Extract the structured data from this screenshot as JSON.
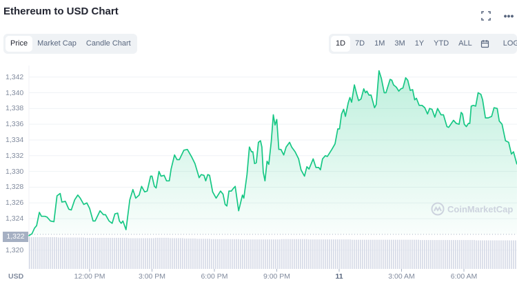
{
  "header": {
    "title": "Ethereum to USD Chart",
    "fullscreen_icon": "expand-icon",
    "more_icon": "more-horizontal-icon"
  },
  "tabs": [
    {
      "label": "Price",
      "active": true
    },
    {
      "label": "Market Cap"
    },
    {
      "label": "Candle Chart"
    }
  ],
  "ranges": [
    {
      "label": "1D",
      "active": true
    },
    {
      "label": "7D"
    },
    {
      "label": "1M"
    },
    {
      "label": "3M"
    },
    {
      "label": "1Y"
    },
    {
      "label": "YTD"
    },
    {
      "label": "ALL"
    }
  ],
  "calendar_icon": "calendar-icon",
  "log_label": "LOG",
  "watermark": "CoinMarketCap",
  "colors": {
    "line": "#16c784",
    "volume": "#d8dce8",
    "reference": "#a6b0c3"
  },
  "chart_data": {
    "type": "area",
    "currency_label": "USD",
    "ylim": [
      1318,
      1343.5
    ],
    "y_ticks": [
      "1,320",
      "1,322",
      "1,324",
      "1,326",
      "1,328",
      "1,330",
      "1,332",
      "1,334",
      "1,336",
      "1,338",
      "1,340",
      "1,342"
    ],
    "y_tick_values": [
      1320,
      1322,
      1324,
      1326,
      1328,
      1330,
      1332,
      1334,
      1336,
      1338,
      1340,
      1342
    ],
    "x_ticks": [
      {
        "label": "12:00 PM",
        "t": "10 12:00"
      },
      {
        "label": "3:00 PM",
        "t": "10 15:00"
      },
      {
        "label": "6:00 PM",
        "t": "10 18:00"
      },
      {
        "label": "9:00 PM",
        "t": "10 21:00"
      },
      {
        "label": "11",
        "t": "11 00:00",
        "bold": true
      },
      {
        "label": "3:00 AM",
        "t": "11 03:00"
      },
      {
        "label": "6:00 AM",
        "t": "11 06:00"
      }
    ],
    "reference_price": {
      "label": "1,322",
      "value": 1322
    },
    "grid": true,
    "series": [
      {
        "points": [
          [
            "10 09:04",
            1321.8
          ],
          [
            "10 09:14",
            1322.1
          ],
          [
            "10 09:21",
            1322.8
          ],
          [
            "10 09:27",
            1323.1
          ],
          [
            "10 09:35",
            1324.8
          ],
          [
            "10 09:41",
            1324.3
          ],
          [
            "10 09:51",
            1324.3
          ],
          [
            "10 09:57",
            1324.2
          ],
          [
            "10 10:07",
            1323.7
          ],
          [
            "10 10:17",
            1323.6
          ],
          [
            "10 10:26",
            1326.9
          ],
          [
            "10 10:35",
            1327.2
          ],
          [
            "10 10:40",
            1326.1
          ],
          [
            "10 10:50",
            1326.2
          ],
          [
            "10 11:00",
            1325.2
          ],
          [
            "10 11:07",
            1325.1
          ],
          [
            "10 11:17",
            1326.4
          ],
          [
            "10 11:26",
            1327.0
          ],
          [
            "10 11:33",
            1326.6
          ],
          [
            "10 11:43",
            1325.8
          ],
          [
            "10 11:52",
            1326.0
          ],
          [
            "10 12:00",
            1325.3
          ],
          [
            "10 12:10",
            1323.7
          ],
          [
            "10 12:16",
            1323.7
          ],
          [
            "10 12:30",
            1325.0
          ],
          [
            "10 12:40",
            1324.5
          ],
          [
            "10 12:46",
            1324.5
          ],
          [
            "10 12:56",
            1323.7
          ],
          [
            "10 13:05",
            1323.4
          ],
          [
            "10 13:13",
            1324.6
          ],
          [
            "10 13:21",
            1324.7
          ],
          [
            "10 13:26",
            1323.7
          ],
          [
            "10 13:31",
            1323.4
          ],
          [
            "10 13:36",
            1323.7
          ],
          [
            "10 13:45",
            1322.6
          ],
          [
            "10 13:56",
            1326.4
          ],
          [
            "10 14:05",
            1327.7
          ],
          [
            "10 14:13",
            1326.6
          ],
          [
            "10 14:23",
            1327.0
          ],
          [
            "10 14:30",
            1328.1
          ],
          [
            "10 14:39",
            1327.4
          ],
          [
            "10 14:46",
            1327.5
          ],
          [
            "10 14:56",
            1329.4
          ],
          [
            "10 15:00",
            1329.4
          ],
          [
            "10 15:07",
            1328.1
          ],
          [
            "10 15:12",
            1327.9
          ],
          [
            "10 15:20",
            1330.0
          ],
          [
            "10 15:26",
            1329.4
          ],
          [
            "10 15:35",
            1329.5
          ],
          [
            "10 15:42",
            1328.8
          ],
          [
            "10 15:50",
            1328.8
          ],
          [
            "10 15:55",
            1330.3
          ],
          [
            "10 16:05",
            1332.1
          ],
          [
            "10 16:12",
            1331.5
          ],
          [
            "10 16:19",
            1331.5
          ],
          [
            "10 16:32",
            1332.7
          ],
          [
            "10 16:42",
            1332.8
          ],
          [
            "10 16:55",
            1331.8
          ],
          [
            "10 17:04",
            1331.0
          ],
          [
            "10 17:16",
            1329.2
          ],
          [
            "10 17:22",
            1329.6
          ],
          [
            "10 17:30",
            1329.5
          ],
          [
            "10 17:35",
            1328.8
          ],
          [
            "10 17:41",
            1329.6
          ],
          [
            "10 17:46",
            1329.5
          ],
          [
            "10 17:55",
            1327.4
          ],
          [
            "10 18:05",
            1326.6
          ],
          [
            "10 18:18",
            1327.5
          ],
          [
            "10 18:25",
            1327.1
          ],
          [
            "10 18:31",
            1325.8
          ],
          [
            "10 18:36",
            1325.6
          ],
          [
            "10 18:42",
            1327.5
          ],
          [
            "10 18:49",
            1327.5
          ],
          [
            "10 18:54",
            1327.8
          ],
          [
            "10 19:00",
            1328.1
          ],
          [
            "10 19:10",
            1325.0
          ],
          [
            "10 19:21",
            1327.0
          ],
          [
            "10 19:25",
            1326.6
          ],
          [
            "10 19:34",
            1329.6
          ],
          [
            "10 19:41",
            1333.1
          ],
          [
            "10 19:47",
            1332.5
          ],
          [
            "10 19:51",
            1332.5
          ],
          [
            "10 19:56",
            1331.0
          ],
          [
            "10 20:01",
            1331.1
          ],
          [
            "10 20:07",
            1333.7
          ],
          [
            "10 20:13",
            1333.9
          ],
          [
            "10 20:17",
            1333.1
          ],
          [
            "10 20:21",
            1329.9
          ],
          [
            "10 20:26",
            1328.8
          ],
          [
            "10 20:32",
            1331.3
          ],
          [
            "10 20:37",
            1330.9
          ],
          [
            "10 20:44",
            1333.8
          ],
          [
            "10 20:50",
            1337.2
          ],
          [
            "10 20:55",
            1335.9
          ],
          [
            "10 21:00",
            1336.6
          ],
          [
            "10 21:06",
            1332.8
          ],
          [
            "10 21:12",
            1332.8
          ],
          [
            "10 21:20",
            1332.1
          ],
          [
            "10 21:27",
            1333.1
          ],
          [
            "10 21:37",
            1333.7
          ],
          [
            "10 21:43",
            1333.1
          ],
          [
            "10 21:53",
            1332.5
          ],
          [
            "10 22:03",
            1331.6
          ],
          [
            "10 22:10",
            1330.2
          ],
          [
            "10 22:20",
            1329.4
          ],
          [
            "10 22:27",
            1330.6
          ],
          [
            "10 22:33",
            1330.3
          ],
          [
            "10 22:45",
            1331.6
          ],
          [
            "10 22:53",
            1330.5
          ],
          [
            "10 23:01",
            1330.5
          ],
          [
            "10 23:06",
            1330.2
          ],
          [
            "10 23:12",
            1331.6
          ],
          [
            "10 23:20",
            1332.0
          ],
          [
            "10 23:26",
            1331.9
          ],
          [
            "10 23:39",
            1332.8
          ],
          [
            "10 23:48",
            1333.5
          ],
          [
            "10 23:56",
            1335.4
          ],
          [
            "11 00:01",
            1335.4
          ],
          [
            "11 00:07",
            1337.3
          ],
          [
            "11 00:13",
            1337.9
          ],
          [
            "11 00:18",
            1337.0
          ],
          [
            "11 00:26",
            1338.7
          ],
          [
            "11 00:31",
            1339.4
          ],
          [
            "11 00:36",
            1338.8
          ],
          [
            "11 00:44",
            1341.0
          ],
          [
            "11 00:51",
            1339.8
          ],
          [
            "11 00:56",
            1339.0
          ],
          [
            "11 01:03",
            1339.2
          ],
          [
            "11 01:11",
            1340.5
          ],
          [
            "11 01:16",
            1340.0
          ],
          [
            "11 01:20",
            1340.2
          ],
          [
            "11 01:26",
            1339.7
          ],
          [
            "11 01:32",
            1339.7
          ],
          [
            "11 01:42",
            1338.1
          ],
          [
            "11 01:47",
            1338.5
          ],
          [
            "11 01:55",
            1342.8
          ],
          [
            "11 02:02",
            1341.8
          ],
          [
            "11 02:10",
            1340.0
          ],
          [
            "11 02:15",
            1340.0
          ],
          [
            "11 02:27",
            1341.7
          ],
          [
            "11 02:32",
            1341.6
          ],
          [
            "11 02:37",
            1341.0
          ],
          [
            "11 02:45",
            1340.7
          ],
          [
            "11 02:52",
            1340.2
          ],
          [
            "11 02:58",
            1340.5
          ],
          [
            "11 03:04",
            1340.6
          ],
          [
            "11 03:12",
            1341.9
          ],
          [
            "11 03:18",
            1341.6
          ],
          [
            "11 03:25",
            1340.3
          ],
          [
            "11 03:32",
            1340.4
          ],
          [
            "11 03:38",
            1339.1
          ],
          [
            "11 03:43",
            1339.3
          ],
          [
            "11 03:51",
            1338.4
          ],
          [
            "11 03:59",
            1338.4
          ],
          [
            "11 04:07",
            1338.1
          ],
          [
            "11 04:15",
            1337.3
          ],
          [
            "11 04:21",
            1338.0
          ],
          [
            "11 04:28",
            1337.9
          ],
          [
            "11 04:36",
            1336.9
          ],
          [
            "11 04:44",
            1338.0
          ],
          [
            "11 04:54",
            1337.2
          ],
          [
            "11 05:01",
            1337.2
          ],
          [
            "11 05:11",
            1335.7
          ],
          [
            "11 05:16",
            1335.6
          ],
          [
            "11 05:30",
            1336.5
          ],
          [
            "11 05:38",
            1336.1
          ],
          [
            "11 05:46",
            1336.0
          ],
          [
            "11 05:52",
            1337.5
          ],
          [
            "11 05:56",
            1337.3
          ],
          [
            "11 06:01",
            1336.0
          ],
          [
            "11 06:07",
            1335.7
          ],
          [
            "11 06:13",
            1336.1
          ],
          [
            "11 06:17",
            1336.1
          ],
          [
            "11 06:21",
            1338.3
          ],
          [
            "11 06:27",
            1338.4
          ],
          [
            "11 06:34",
            1338.3
          ],
          [
            "11 06:41",
            1340.0
          ],
          [
            "11 06:49",
            1339.8
          ],
          [
            "11 06:54",
            1339.1
          ],
          [
            "11 07:02",
            1336.8
          ],
          [
            "11 07:10",
            1336.8
          ],
          [
            "11 07:20",
            1337.0
          ],
          [
            "11 07:27",
            1338.1
          ],
          [
            "11 07:36",
            1338.0
          ],
          [
            "11 07:42",
            1336.4
          ],
          [
            "11 07:50",
            1336.0
          ],
          [
            "11 08:00",
            1333.9
          ],
          [
            "11 08:09",
            1333.7
          ],
          [
            "11 08:17",
            1332.2
          ],
          [
            "11 08:23",
            1332.5
          ],
          [
            "11 08:33",
            1330.9
          ]
        ]
      }
    ],
    "volume_relative": [
      1.0,
      1.0,
      0.99,
      0.99,
      0.98,
      0.98,
      0.98,
      0.97,
      0.97,
      0.98,
      0.97,
      0.96,
      0.95,
      0.94,
      0.94,
      0.93,
      0.93,
      0.93,
      0.94,
      0.94,
      0.93,
      0.93,
      0.93,
      0.92,
      0.92,
      0.92,
      0.92,
      0.92,
      0.91,
      0.91,
      0.91,
      0.91,
      0.9,
      0.9,
      0.9
    ]
  }
}
